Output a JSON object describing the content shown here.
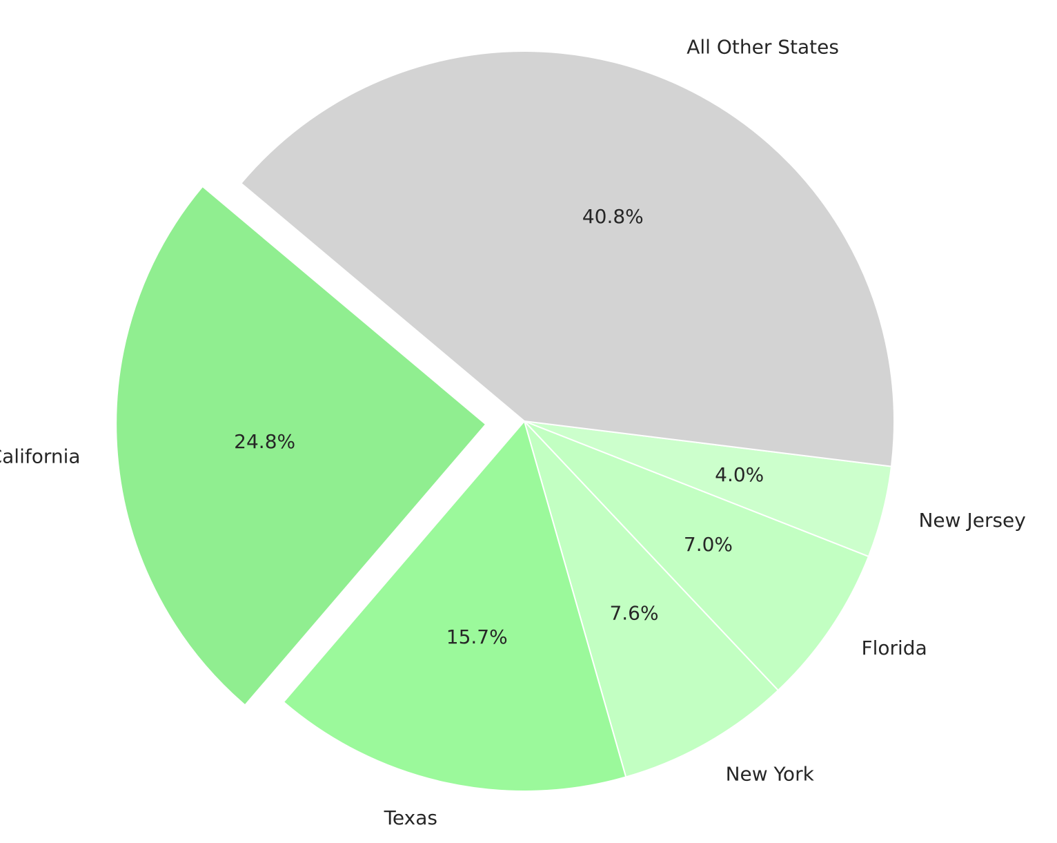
{
  "chart_data": {
    "type": "pie",
    "title": "",
    "start_angle_deg": 140,
    "direction": "counterclockwise",
    "slices": [
      {
        "label": "California",
        "value": 24.8,
        "display": "24.8%",
        "color": "#90ee90",
        "exploded": true
      },
      {
        "label": "Texas",
        "value": 15.7,
        "display": "15.7%",
        "color": "#9bf99b",
        "exploded": false
      },
      {
        "label": "New York",
        "value": 7.6,
        "display": "7.6%",
        "color": "#c2ffc2",
        "exploded": false
      },
      {
        "label": "Florida",
        "value": 7.0,
        "display": "7.0%",
        "color": "#c2ffc2",
        "exploded": false
      },
      {
        "label": "New Jersey",
        "value": 4.0,
        "display": "4.0%",
        "color": "#ccffcc",
        "exploded": false
      },
      {
        "label": "All Other States",
        "value": 40.8,
        "display": "40.8%",
        "color": "#d3d3d3",
        "exploded": false
      }
    ]
  }
}
